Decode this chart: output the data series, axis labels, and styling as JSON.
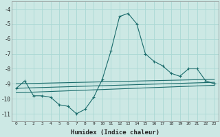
{
  "xlabel": "Humidex (Indice chaleur)",
  "bg_color": "#cce8e4",
  "grid_color": "#aad8d4",
  "line_color": "#1a6b6b",
  "xlim": [
    -0.5,
    23.5
  ],
  "ylim": [
    -11.5,
    -3.5
  ],
  "yticks": [
    -11,
    -10,
    -9,
    -8,
    -7,
    -6,
    -5,
    -4
  ],
  "xticks": [
    0,
    1,
    2,
    3,
    4,
    5,
    6,
    7,
    8,
    9,
    10,
    11,
    12,
    13,
    14,
    15,
    16,
    17,
    18,
    19,
    20,
    21,
    22,
    23
  ],
  "main_series": {
    "x": [
      0,
      1,
      2,
      3,
      4,
      5,
      6,
      7,
      8,
      9,
      10,
      11,
      12,
      13,
      14,
      15,
      16,
      17,
      18,
      19,
      20,
      21,
      22,
      23
    ],
    "y": [
      -9.3,
      -8.8,
      -9.8,
      -9.8,
      -9.9,
      -10.4,
      -10.5,
      -11.0,
      -10.7,
      -9.9,
      -8.7,
      -6.8,
      -4.5,
      -4.3,
      -5.0,
      -7.0,
      -7.5,
      -7.8,
      -8.3,
      -8.5,
      -8.0,
      -8.0,
      -8.8,
      -9.0
    ]
  },
  "linear_lines": [
    {
      "x0": 0,
      "y0": -9.0,
      "x1": 23,
      "y1": -8.7
    },
    {
      "x0": 0,
      "y0": -9.3,
      "x1": 23,
      "y1": -8.9
    },
    {
      "x0": 0,
      "y0": -9.6,
      "x1": 23,
      "y1": -9.1
    }
  ]
}
